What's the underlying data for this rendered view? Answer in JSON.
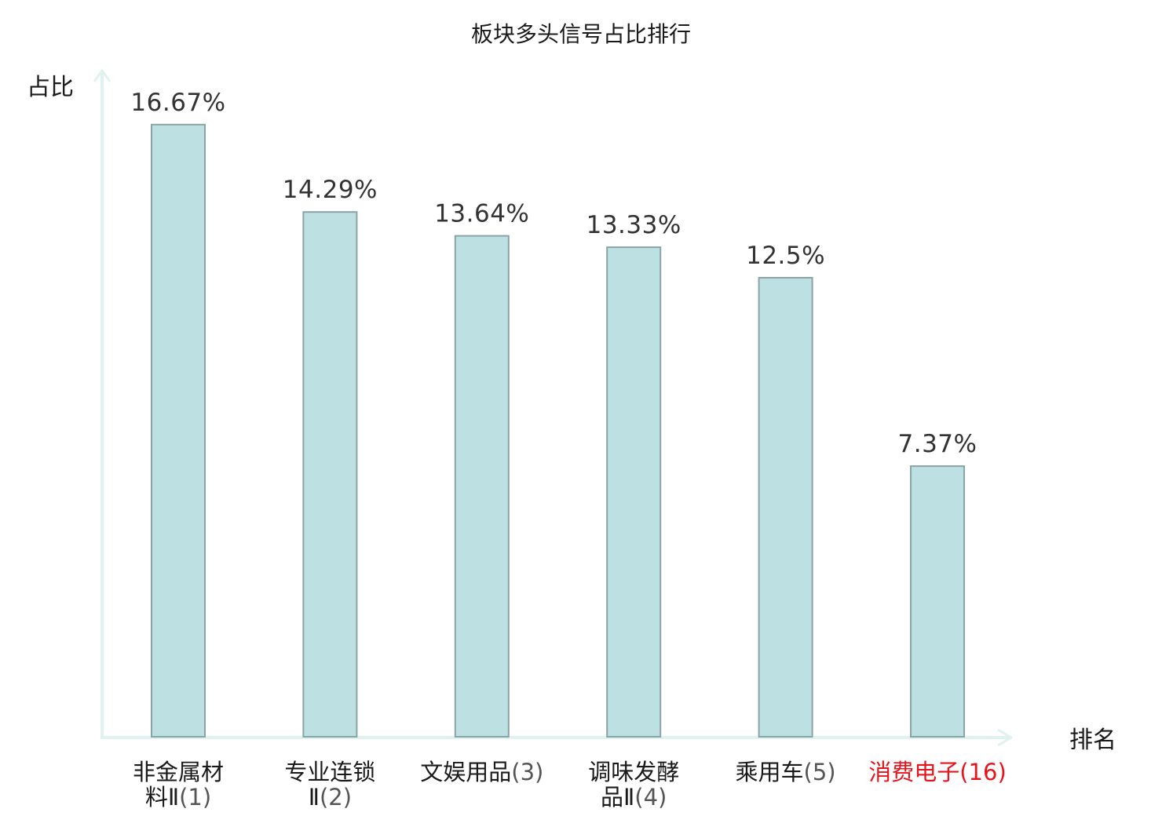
{
  "title": "板块多头信号占比排行",
  "colors": {
    "bar_fill": "#bde0e3",
    "bar_stroke": "#8aa3a6",
    "axis": "#dff2ef",
    "text": "#1a1a1a",
    "value_text": "#333333",
    "rank_text": "#555555",
    "highlight": "#e8141c"
  },
  "chart_data": {
    "type": "bar",
    "title": "板块多头信号占比排行",
    "xlabel": "排名",
    "ylabel": "占比",
    "ylim": [
      0,
      18.14
    ],
    "grid": false,
    "legend": "none",
    "categories": [
      {
        "line1": "非金属材",
        "line2_name": "料Ⅱ",
        "rank": "(1)",
        "highlight": false
      },
      {
        "line1": "专业连锁",
        "line2_name": "Ⅱ",
        "rank": "(2)",
        "highlight": false
      },
      {
        "line1": "文娱用品",
        "line2_name": "",
        "rank": "(3)",
        "highlight": false
      },
      {
        "line1": "调味发酵",
        "line2_name": "品Ⅱ",
        "rank": "(4)",
        "highlight": false
      },
      {
        "line1": "乘用车",
        "line2_name": "",
        "rank": "(5)",
        "highlight": false
      },
      {
        "line1": "消费电子",
        "line2_name": "",
        "rank": "(16)",
        "highlight": true
      }
    ],
    "values": [
      16.67,
      14.29,
      13.64,
      13.33,
      12.5,
      7.37
    ],
    "labels": [
      "16.67%",
      "14.29%",
      "13.64%",
      "13.33%",
      "12.5%",
      "7.37%"
    ]
  }
}
